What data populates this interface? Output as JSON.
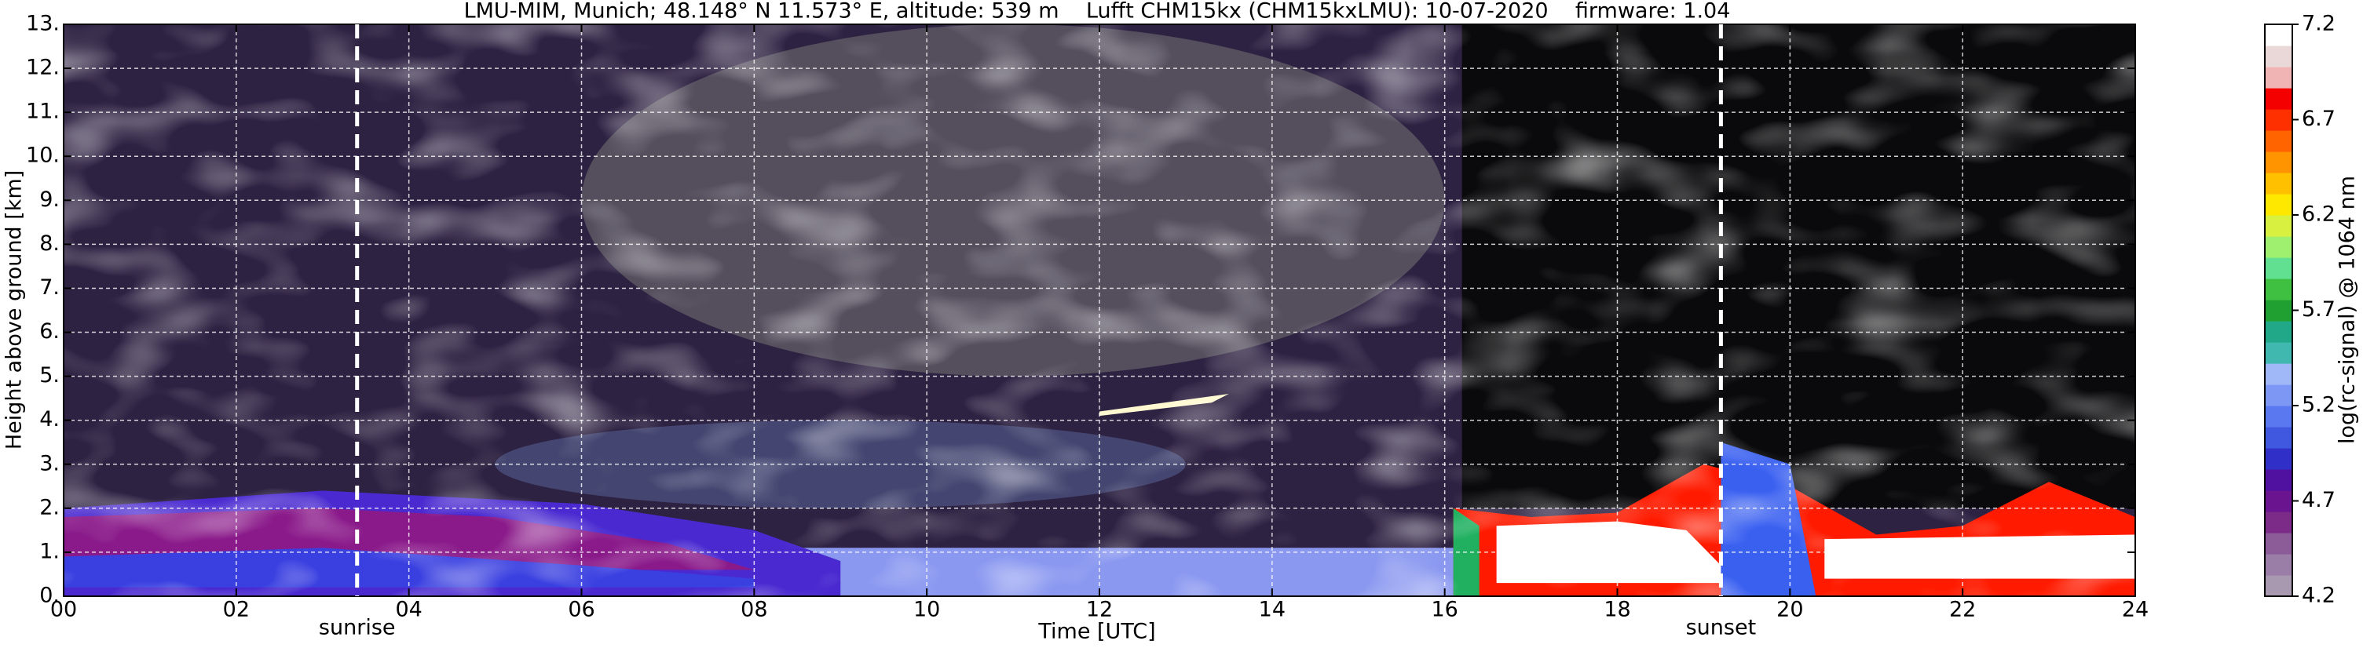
{
  "chart_data": {
    "type": "heatmap",
    "title": "LMU-MIM, Munich; 48.148° N 11.573° E, altitude: 539 m    Lufft CHM15kx (CHM15kxLMU): 10-07-2020    firmware: 1.04",
    "xlabel": "Time [UTC]",
    "ylabel": "Height above ground [km]",
    "xlim": [
      0,
      24
    ],
    "ylim": [
      0,
      13
    ],
    "xticks": [
      {
        "value": 0,
        "label": "00"
      },
      {
        "value": 2,
        "label": "02"
      },
      {
        "value": 4,
        "label": "04"
      },
      {
        "value": 6,
        "label": "06"
      },
      {
        "value": 8,
        "label": "08"
      },
      {
        "value": 10,
        "label": "10"
      },
      {
        "value": 12,
        "label": "12"
      },
      {
        "value": 14,
        "label": "14"
      },
      {
        "value": 16,
        "label": "16"
      },
      {
        "value": 18,
        "label": "18"
      },
      {
        "value": 20,
        "label": "20"
      },
      {
        "value": 22,
        "label": "22"
      },
      {
        "value": 24,
        "label": "24"
      }
    ],
    "yticks": [
      {
        "value": 0,
        "label": "0."
      },
      {
        "value": 1,
        "label": "1."
      },
      {
        "value": 2,
        "label": "2."
      },
      {
        "value": 3,
        "label": "3."
      },
      {
        "value": 4,
        "label": "4."
      },
      {
        "value": 5,
        "label": "5."
      },
      {
        "value": 6,
        "label": "6."
      },
      {
        "value": 7,
        "label": "7."
      },
      {
        "value": 8,
        "label": "8."
      },
      {
        "value": 9,
        "label": "9."
      },
      {
        "value": 10,
        "label": "10."
      },
      {
        "value": 11,
        "label": "11."
      },
      {
        "value": 12,
        "label": "12."
      },
      {
        "value": 13,
        "label": "13."
      }
    ],
    "grid": true,
    "annotations": [
      {
        "text": "sunrise",
        "x": 3.4
      },
      {
        "text": "sunset",
        "x": 19.2
      }
    ],
    "colorbar": {
      "label": "log(rc-signal) @ 1064 nm",
      "clim": [
        4.2,
        7.2
      ],
      "ticks": [
        4.2,
        4.7,
        5.2,
        5.7,
        6.2,
        6.7,
        7.2
      ],
      "colors": [
        "#a898b0",
        "#9a7ea8",
        "#8c5c98",
        "#7c2c88",
        "#6a1490",
        "#5010a0",
        "#3030c8",
        "#4058e0",
        "#5a78f0",
        "#7c98f4",
        "#a0b8f8",
        "#40b8b0",
        "#20a888",
        "#20a030",
        "#40c040",
        "#60e090",
        "#a0f070",
        "#d8f040",
        "#ffe800",
        "#ffc000",
        "#ff9400",
        "#ff6400",
        "#ff3000",
        "#f40000",
        "#f0b4b4",
        "#ead8d8",
        "#ffffff"
      ]
    }
  }
}
